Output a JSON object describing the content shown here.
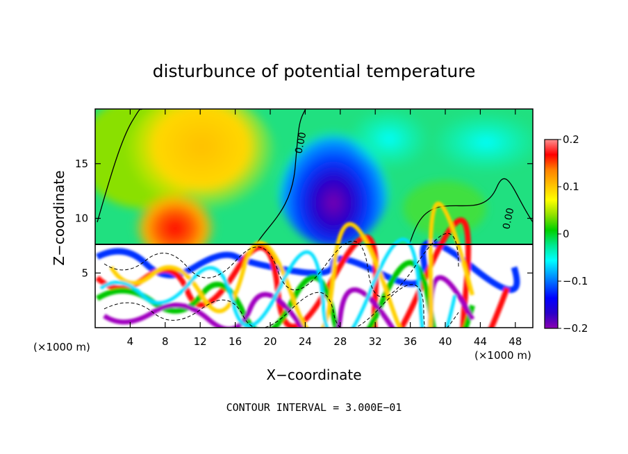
{
  "chart_data": {
    "type": "heatmap",
    "title": "disturbunce of potential temperature",
    "xlabel": "X−coordinate",
    "ylabel": "Z−coordinate",
    "x_unit_left": "(×1000 m)",
    "x_unit_right": "(×1000 m)",
    "xlim": [
      0,
      50
    ],
    "ylim": [
      0,
      20
    ],
    "x_ticks": [
      4,
      8,
      12,
      16,
      20,
      24,
      28,
      32,
      36,
      40,
      44,
      48
    ],
    "y_ticks": [
      5,
      10,
      15
    ],
    "x_tick_labels": [
      "4",
      "8",
      "12",
      "16",
      "20",
      "24",
      "28",
      "32",
      "36",
      "40",
      "44",
      "48"
    ],
    "y_tick_labels": [
      "5",
      "10",
      "15"
    ],
    "colorbar": {
      "range": [
        -0.2,
        0.2
      ],
      "tick_values": [
        0.2,
        0.1,
        0,
        -0.1,
        -0.2
      ],
      "tick_labels": [
        "0.2",
        "0.1",
        "0",
        "−0.1",
        "−0.2"
      ]
    },
    "contour_labels": [
      "0.00",
      "0.00"
    ],
    "footer": "CONTOUR INTERVAL = 3.000E−01",
    "features": [
      {
        "kind": "warm",
        "x": 9,
        "z": 10,
        "value": 0.2
      },
      {
        "kind": "warm",
        "x": 12,
        "z": 16,
        "value": 0.09
      },
      {
        "kind": "cold",
        "x": 29,
        "z": 9.5,
        "value": -0.2
      },
      {
        "kind": "cold",
        "x": 28,
        "z": 15,
        "value": -0.12
      }
    ],
    "grid": false,
    "colorbar_position": "right"
  }
}
